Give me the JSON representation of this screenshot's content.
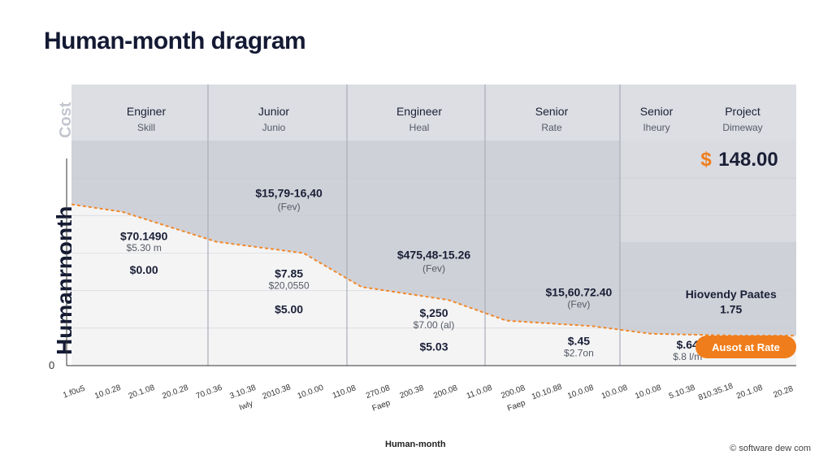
{
  "page": {
    "title": "Human-month dragram",
    "y_axis_title": "Humanrnonth",
    "y_axis_cut_label": "Cost",
    "zero_label": "0",
    "x_axis_title": "Human-month",
    "credit": "© software dew com"
  },
  "chart_data": {
    "type": "area",
    "title": "Human-month dragram",
    "xlabel": "Human-month",
    "ylabel": "Humanrnonth",
    "ylim": [
      0,
      6
    ],
    "columns": [
      {
        "header": "Enginer",
        "sub": "Skill"
      },
      {
        "header": "Junior",
        "sub": "Junio"
      },
      {
        "header": "Engineer",
        "sub": "Heal"
      },
      {
        "header": "Senior",
        "sub": "Rate"
      },
      {
        "header": "Senior",
        "sub": "Iheury"
      },
      {
        "header": "Project",
        "sub": "Dimeway"
      }
    ],
    "curve": {
      "x": [
        0,
        0.35,
        1,
        1.6,
        2,
        2.6,
        3,
        3.6,
        4,
        4.6,
        5
      ],
      "y": [
        4.3,
        4.1,
        3.3,
        3.0,
        2.1,
        1.75,
        1.2,
        1.05,
        0.85,
        0.8,
        0.8
      ]
    },
    "value_labels": [
      {
        "text": "$70.1490",
        "x": 0.5,
        "y": 3.35,
        "bold": true
      },
      {
        "text": "$5.30 m",
        "x": 0.5,
        "y": 3.05
      },
      {
        "text": "$0.00",
        "x": 0.5,
        "y": 2.45,
        "bold": true
      },
      {
        "text": "$5.00",
        "x": 1.5,
        "y": 1.4,
        "bold": true
      },
      {
        "text": "$15,79-16,40",
        "x": 1.5,
        "y": 4.5,
        "bold": true
      },
      {
        "text": "(Fev)",
        "x": 1.5,
        "y": 4.15
      },
      {
        "text": "$7.85",
        "x": 1.5,
        "y": 2.35,
        "bold": true
      },
      {
        "text": "$20,0550",
        "x": 1.5,
        "y": 2.05
      },
      {
        "text": "$475,48-15.26",
        "x": 2.5,
        "y": 2.85,
        "bold": true
      },
      {
        "text": "(Fev)",
        "x": 2.5,
        "y": 2.5
      },
      {
        "text": "$,250",
        "x": 2.5,
        "y": 1.3,
        "bold": true
      },
      {
        "text": "$7.00 (al)",
        "x": 2.5,
        "y": 1.0
      },
      {
        "text": "$5.03",
        "x": 2.5,
        "y": 0.4,
        "bold": true
      },
      {
        "text": "$15,60.72.40",
        "x": 3.5,
        "y": 1.85,
        "bold": true
      },
      {
        "text": "(Fev)",
        "x": 3.5,
        "y": 1.55
      },
      {
        "text": "$.45",
        "x": 3.5,
        "y": 0.55,
        "bold": true
      },
      {
        "text": "$2.7on",
        "x": 3.5,
        "y": 0.25
      },
      {
        "text": "$.64",
        "x": 4.25,
        "y": 0.45,
        "bold": true
      },
      {
        "text": "$.8 l/m",
        "x": 4.25,
        "y": 0.15
      },
      {
        "text": "Hiovendy Paates",
        "x": 4.55,
        "y": 1.8,
        "bold": true
      },
      {
        "text": "1.75",
        "x": 4.55,
        "y": 1.4,
        "bold": true
      }
    ],
    "highlight_value": {
      "symbol": "$",
      "value": "148.00",
      "color": "#f07d1b"
    },
    "badge": {
      "label": "Ausot at Rate",
      "color": "#f07d1b"
    },
    "x_ticks": [
      {
        "line1": "1.f0u5",
        "line2": ""
      },
      {
        "line1": "10.0.28",
        "line2": ""
      },
      {
        "line1": "20.1.08",
        "line2": ""
      },
      {
        "line1": "20.0.28",
        "line2": ""
      },
      {
        "line1": "70.0.36",
        "line2": ""
      },
      {
        "line1": "3.10.38",
        "line2": "Iwly"
      },
      {
        "line1": "2010.38",
        "line2": ""
      },
      {
        "line1": "10.0.00",
        "line2": ""
      },
      {
        "line1": "110.08",
        "line2": ""
      },
      {
        "line1": "270.08",
        "line2": "Faep"
      },
      {
        "line1": "200.38",
        "line2": ""
      },
      {
        "line1": "200.08",
        "line2": ""
      },
      {
        "line1": "11.0.08",
        "line2": ""
      },
      {
        "line1": "200.08",
        "line2": "Faep"
      },
      {
        "line1": "10.10.88",
        "line2": ""
      },
      {
        "line1": "10.0.08",
        "line2": ""
      },
      {
        "line1": "10.0.08",
        "line2": ""
      },
      {
        "line1": "10.0.08",
        "line2": ""
      },
      {
        "line1": "5.10.38",
        "line2": ""
      },
      {
        "line1": "810.35.18",
        "line2": ""
      },
      {
        "line1": "20.1.08",
        "line2": ""
      },
      {
        "line1": "20.28",
        "line2": ""
      }
    ],
    "colors": {
      "header_bg": "#dcdee3",
      "shade": "#cfd1d8",
      "shade_light": "#d9dbe0",
      "under_curve": "#f4f4f5",
      "curve": "#f08a2c",
      "grid": "#c9ccd3",
      "divider": "#a9adb8",
      "axis": "#333333",
      "text": "#1a1f36",
      "muted": "#555a66"
    }
  }
}
